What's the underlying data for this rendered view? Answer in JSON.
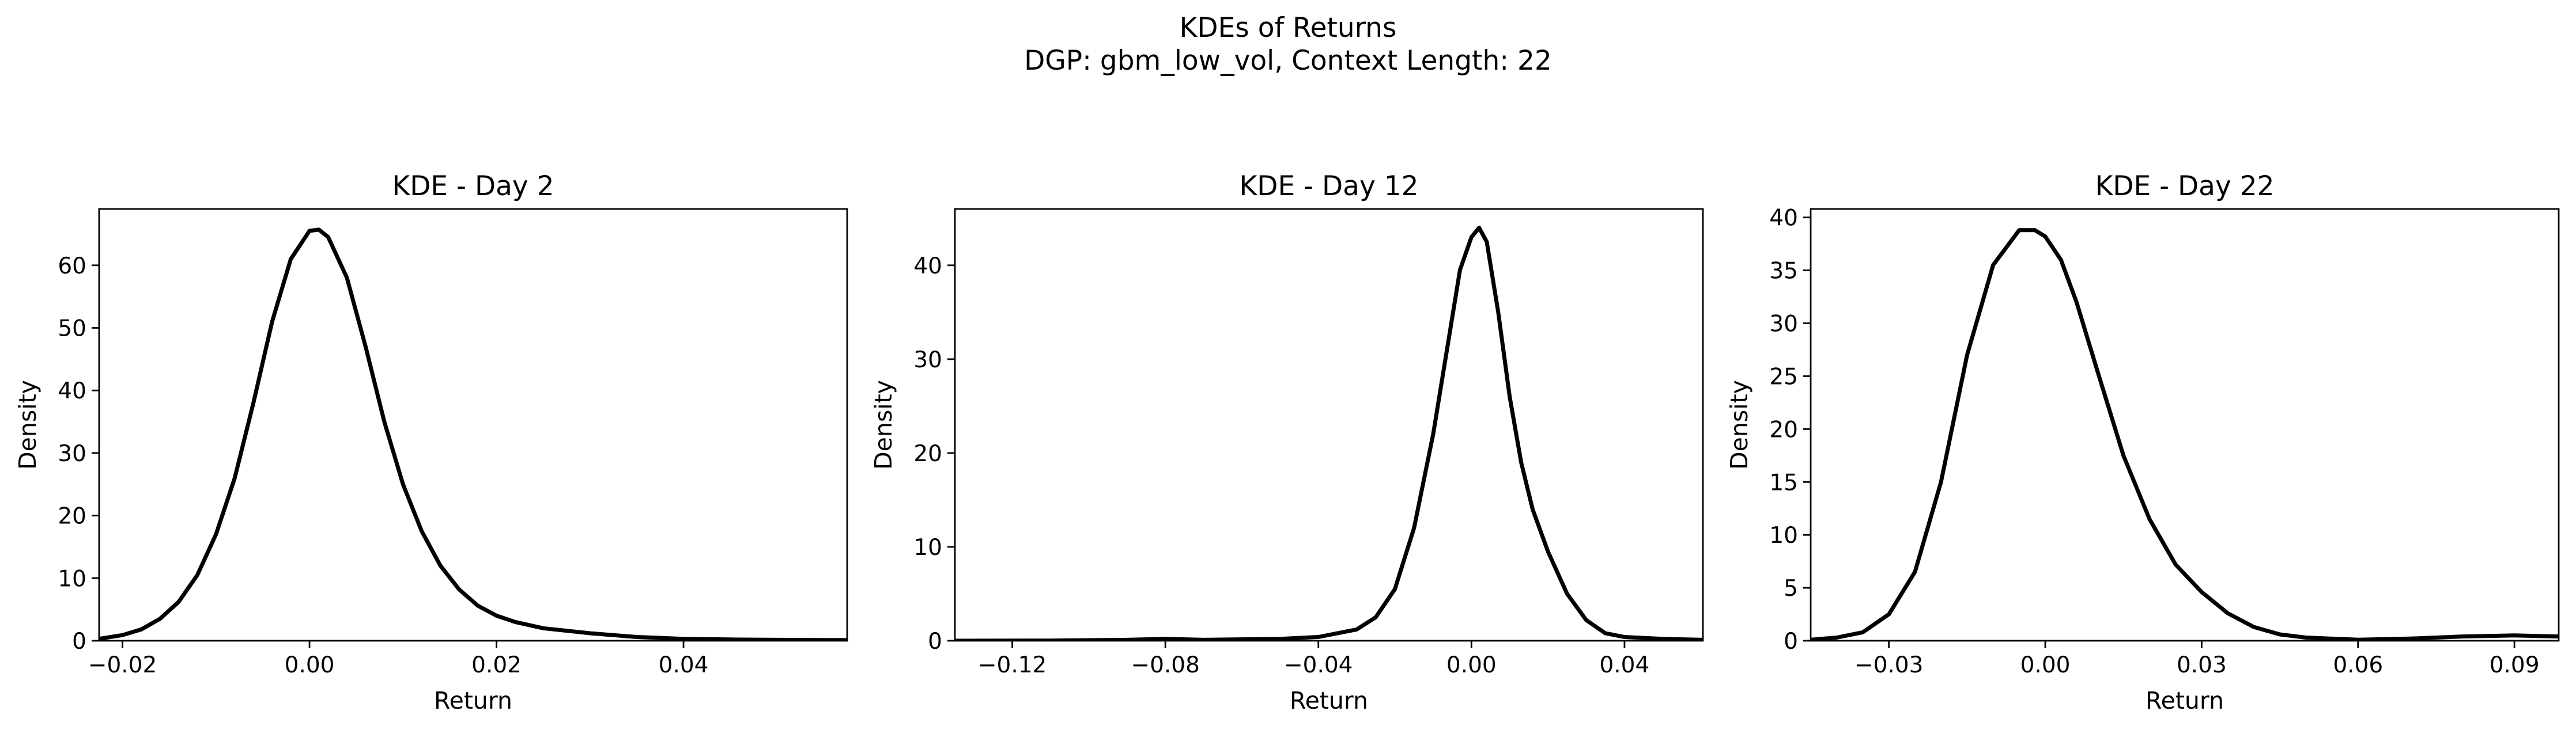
{
  "figure": {
    "title_line1": "KDEs of Returns",
    "title_line2": "DGP: gbm_low_vol, Context Length: 22"
  },
  "chart_data": [
    {
      "type": "line",
      "title": "KDE - Day 2",
      "xlabel": "Return",
      "ylabel": "Density",
      "xlim": [
        -0.0225,
        0.0575
      ],
      "ylim": [
        0,
        69
      ],
      "xticks": [
        -0.02,
        0.0,
        0.02,
        0.04
      ],
      "xtick_labels": [
        "−0.02",
        "0.00",
        "0.02",
        "0.04"
      ],
      "yticks": [
        0,
        10,
        20,
        30,
        40,
        50,
        60
      ],
      "ytick_labels": [
        "0",
        "10",
        "20",
        "30",
        "40",
        "50",
        "60"
      ],
      "grid": false,
      "color": "#000000",
      "x": [
        -0.0225,
        -0.02,
        -0.018,
        -0.016,
        -0.014,
        -0.012,
        -0.01,
        -0.008,
        -0.006,
        -0.004,
        -0.002,
        0.0,
        0.001,
        0.002,
        0.004,
        0.006,
        0.008,
        0.01,
        0.012,
        0.014,
        0.016,
        0.018,
        0.02,
        0.022,
        0.025,
        0.03,
        0.035,
        0.04,
        0.045,
        0.05,
        0.0575
      ],
      "y": [
        0.3,
        0.9,
        1.8,
        3.5,
        6.2,
        10.5,
        17.0,
        26.0,
        38.0,
        51.0,
        61.0,
        65.5,
        65.7,
        64.5,
        58.0,
        47.0,
        35.0,
        25.0,
        17.5,
        12.0,
        8.2,
        5.6,
        4.0,
        3.0,
        2.0,
        1.2,
        0.6,
        0.3,
        0.2,
        0.15,
        0.1
      ]
    },
    {
      "type": "line",
      "title": "KDE - Day 12",
      "xlabel": "Return",
      "ylabel": "Density",
      "xlim": [
        -0.135,
        0.0605
      ],
      "ylim": [
        0,
        46
      ],
      "xticks": [
        -0.12,
        -0.08,
        -0.04,
        0.0,
        0.04
      ],
      "xtick_labels": [
        "−0.12",
        "−0.08",
        "−0.04",
        "0.00",
        "0.04"
      ],
      "yticks": [
        0,
        10,
        20,
        30,
        40
      ],
      "ytick_labels": [
        "0",
        "10",
        "20",
        "30",
        "40"
      ],
      "grid": false,
      "color": "#000000",
      "x": [
        -0.135,
        -0.11,
        -0.09,
        -0.08,
        -0.07,
        -0.05,
        -0.04,
        -0.03,
        -0.025,
        -0.02,
        -0.015,
        -0.01,
        -0.006,
        -0.003,
        0.0,
        0.002,
        0.004,
        0.007,
        0.01,
        0.013,
        0.016,
        0.02,
        0.025,
        0.03,
        0.035,
        0.04,
        0.05,
        0.0605
      ],
      "y": [
        0.0,
        0.02,
        0.1,
        0.2,
        0.1,
        0.2,
        0.4,
        1.2,
        2.5,
        5.5,
        12.0,
        22.0,
        32.0,
        39.5,
        43.0,
        44.0,
        42.5,
        35.0,
        26.0,
        19.0,
        14.0,
        9.5,
        5.0,
        2.2,
        0.8,
        0.4,
        0.2,
        0.1
      ]
    },
    {
      "type": "line",
      "title": "KDE - Day 22",
      "xlabel": "Return",
      "ylabel": "Density",
      "xlim": [
        -0.045,
        0.0985
      ],
      "ylim": [
        0,
        40.8
      ],
      "xticks": [
        -0.03,
        0.0,
        0.03,
        0.06,
        0.09
      ],
      "xtick_labels": [
        "−0.03",
        "0.00",
        "0.03",
        "0.06",
        "0.09"
      ],
      "yticks": [
        0,
        5,
        10,
        15,
        20,
        25,
        30,
        35,
        40
      ],
      "ytick_labels": [
        "0",
        "5",
        "10",
        "15",
        "20",
        "25",
        "30",
        "35",
        "40"
      ],
      "grid": false,
      "color": "#000000",
      "x": [
        -0.045,
        -0.04,
        -0.035,
        -0.03,
        -0.025,
        -0.02,
        -0.015,
        -0.01,
        -0.005,
        -0.002,
        0.0,
        0.003,
        0.006,
        0.01,
        0.015,
        0.02,
        0.025,
        0.03,
        0.035,
        0.04,
        0.045,
        0.05,
        0.06,
        0.07,
        0.08,
        0.09,
        0.0985
      ],
      "y": [
        0.1,
        0.3,
        0.8,
        2.5,
        6.5,
        15.0,
        27.0,
        35.5,
        38.8,
        38.8,
        38.2,
        36.0,
        32.0,
        25.5,
        17.5,
        11.5,
        7.2,
        4.6,
        2.6,
        1.3,
        0.6,
        0.3,
        0.1,
        0.2,
        0.4,
        0.5,
        0.4
      ]
    }
  ]
}
